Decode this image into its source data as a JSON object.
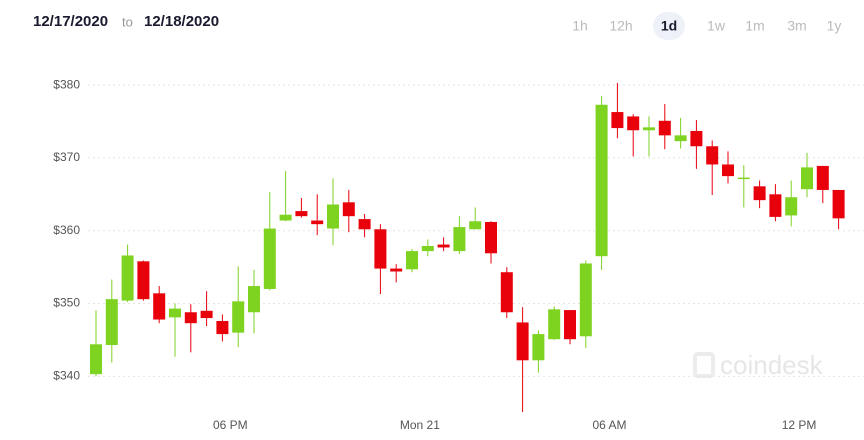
{
  "header": {
    "start_date": "12/17/2020",
    "separator": "to",
    "end_date": "12/18/2020",
    "ranges": [
      "1h",
      "12h",
      "1d",
      "1w",
      "1m",
      "3m",
      "1y"
    ],
    "active_range": 2
  },
  "watermark": "coindesk",
  "chart_data": {
    "type": "candlestick",
    "categories": [
      null,
      null,
      null,
      null,
      null,
      null,
      null,
      null,
      null,
      "06 PM",
      null,
      null,
      null,
      null,
      null,
      null,
      null,
      null,
      null,
      null,
      null,
      "Mon 21",
      null,
      null,
      null,
      null,
      null,
      null,
      null,
      null,
      null,
      null,
      null,
      "06 AM",
      null,
      null,
      null,
      null,
      null,
      null,
      null,
      null,
      null,
      null,
      null,
      "12 PM",
      null,
      null
    ],
    "open": [
      340.3,
      344.3,
      350.4,
      355.8,
      351.4,
      348.1,
      348.8,
      349,
      347.6,
      346,
      348.8,
      352,
      361.4,
      362.7,
      361.4,
      360.3,
      363.9,
      361.6,
      360.2,
      354.8,
      354.7,
      357.2,
      358.1,
      357.2,
      360.2,
      361.2,
      354.3,
      347.4,
      342.2,
      345.1,
      349.1,
      345.5,
      356.5,
      376.3,
      375.7,
      373.8,
      375.1,
      372.3,
      373.7,
      371.6,
      369.1,
      367.1,
      366.1,
      365,
      362.1,
      365.7,
      368.9,
      365.6
    ],
    "high": [
      349.1,
      353.3,
      358.1,
      355.9,
      352.4,
      350,
      349.9,
      351.7,
      348.5,
      355.1,
      354.6,
      365.3,
      368.2,
      364.5,
      365,
      367.2,
      365.6,
      362.3,
      360.9,
      355.4,
      357.5,
      358.8,
      359.1,
      362,
      363.2,
      361.3,
      355,
      349.5,
      346.3,
      349.6,
      349.1,
      355.9,
      378.5,
      380.3,
      376,
      375.7,
      377.4,
      375.5,
      375.2,
      372.4,
      370.9,
      369,
      366.9,
      366.4,
      366.9,
      370.7,
      368.9,
      365.6
    ],
    "low": [
      340,
      341.9,
      350.2,
      350.4,
      347.3,
      342.7,
      343.3,
      346.9,
      344.8,
      344,
      345.9,
      351.8,
      361.3,
      361.8,
      359.4,
      358,
      359.8,
      359.1,
      351.3,
      352.9,
      354.3,
      356.5,
      357.2,
      356.8,
      360.2,
      355.5,
      348,
      335.1,
      340.5,
      345,
      344.4,
      343.9,
      354.6,
      372.7,
      370.2,
      370.2,
      371.2,
      371.3,
      368.5,
      364.9,
      366.5,
      363.2,
      363.1,
      361.3,
      360.6,
      364.6,
      363.8,
      360.2
    ],
    "close": [
      344.4,
      350.6,
      356.6,
      350.6,
      347.8,
      349.3,
      347.3,
      348,
      345.8,
      350.3,
      352.4,
      360.3,
      362.2,
      362,
      360.9,
      363.6,
      362,
      360.2,
      354.8,
      354.4,
      357.2,
      357.9,
      357.7,
      360.5,
      361.3,
      356.9,
      348.8,
      342.2,
      345.8,
      349.2,
      345.1,
      355.5,
      377.3,
      374.1,
      373.8,
      374.2,
      373.1,
      373.1,
      371.6,
      369.1,
      367.5,
      367.3,
      364.2,
      361.9,
      364.6,
      368.7,
      365.6,
      361.7
    ],
    "up_color": "#7ed321",
    "down_color": "#e8000b",
    "ylim": [
      334,
      384
    ],
    "yticks": [
      {
        "value": 340,
        "label": "$340"
      },
      {
        "value": 350,
        "label": "$350"
      },
      {
        "value": 360,
        "label": "$360"
      },
      {
        "value": 370,
        "label": "$370"
      },
      {
        "value": 380,
        "label": "$380"
      }
    ],
    "grid": true
  }
}
